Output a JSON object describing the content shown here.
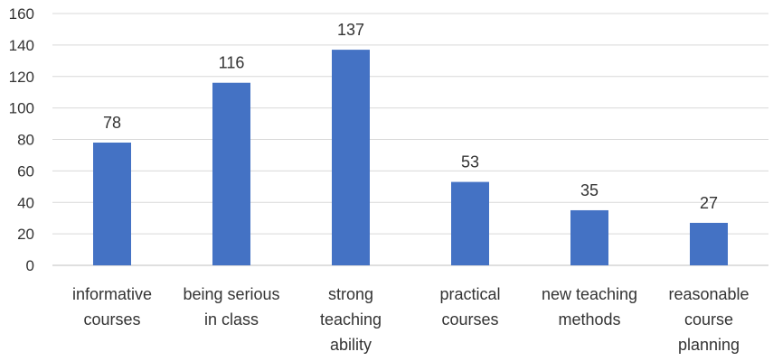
{
  "chart_data": {
    "type": "bar",
    "title": "",
    "xlabel": "",
    "ylabel": "",
    "categories": [
      [
        "informative",
        "courses"
      ],
      [
        "being serious",
        "in class"
      ],
      [
        "strong",
        "teaching",
        "ability"
      ],
      [
        "practical",
        "courses"
      ],
      [
        "new teaching",
        "methods"
      ],
      [
        "reasonable",
        "course",
        "planning"
      ]
    ],
    "values": [
      78,
      116,
      137,
      53,
      35,
      27
    ],
    "data_labels": [
      "78",
      "116",
      "137",
      "53",
      "35",
      "27"
    ],
    "ylim": [
      0,
      160
    ],
    "yticks": [
      0,
      20,
      40,
      60,
      80,
      100,
      120,
      140,
      160
    ],
    "grid": true,
    "legend": "none",
    "bar_color": "#4472C4"
  }
}
